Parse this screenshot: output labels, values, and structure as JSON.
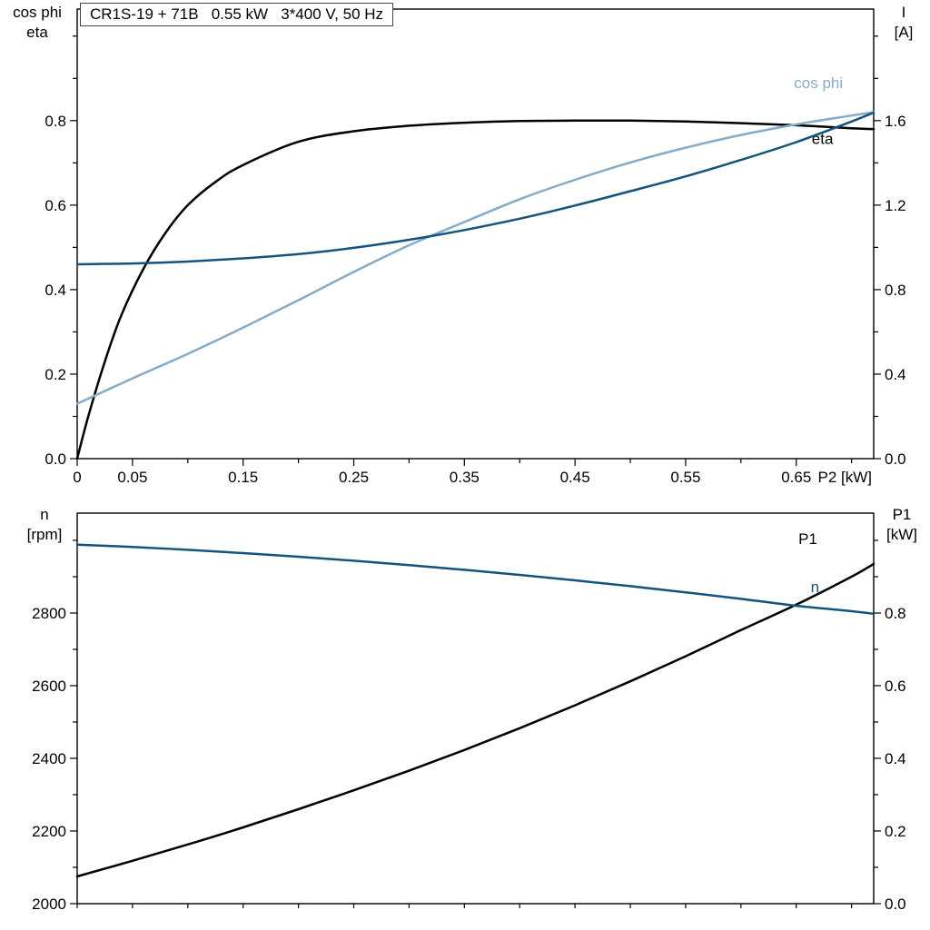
{
  "title_box": {
    "text": "CR1S-19 + 71B   0.55 kW   3*400 V, 50 Hz"
  },
  "corner_labels": {
    "top_left": [
      "cos phi",
      "eta"
    ],
    "top_right": [
      "I",
      "[A]"
    ],
    "bottom_left": [
      "n",
      "[rpm]"
    ],
    "bottom_right": [
      "P1",
      "[kW]"
    ]
  },
  "colors": {
    "black": "#000000",
    "dark_blue": "#14537d",
    "light_blue": "#85abc7",
    "frame": "#000000"
  },
  "chart_data": [
    {
      "type": "line",
      "title": "CR1S-19 + 71B  0.55 kW  3*400 V, 50 Hz",
      "grid": false,
      "x_axis": {
        "label": "P2 [kW]",
        "range": [
          0,
          0.72
        ],
        "tick_values": [
          0,
          0.05,
          0.1,
          0.15,
          0.2,
          0.25,
          0.3,
          0.35,
          0.4,
          0.45,
          0.5,
          0.55,
          0.6,
          0.65,
          0.7
        ],
        "tick_labels": [
          "0",
          "0.05",
          "",
          "0.15",
          "",
          "0.25",
          "",
          "0.35",
          "",
          "0.45",
          "",
          "0.55",
          "",
          "0.65",
          ""
        ]
      },
      "y_left": {
        "label": "cos phi / eta",
        "range": [
          0,
          1.064
        ],
        "tick_values": [
          0,
          0.1,
          0.2,
          0.3,
          0.4,
          0.5,
          0.6,
          0.7,
          0.8,
          0.9,
          1.0
        ],
        "tick_labels": [
          "0.0",
          "",
          "0.2",
          "",
          "0.4",
          "",
          "0.6",
          "",
          "0.8",
          "",
          ""
        ]
      },
      "y_right": {
        "label": "I [A]",
        "range": [
          0,
          2.128
        ],
        "tick_values": [
          0,
          0.2,
          0.4,
          0.6,
          0.8,
          1.0,
          1.2,
          1.4,
          1.6,
          1.8,
          2.0
        ],
        "tick_labels": [
          "0.0",
          "",
          "0.4",
          "",
          "0.8",
          "",
          "1.2",
          "",
          "1.6",
          "",
          ""
        ]
      },
      "series": [
        {
          "name": "eta",
          "axis": "left",
          "color": "#000000",
          "x": [
            0,
            0.01,
            0.025,
            0.04,
            0.06,
            0.08,
            0.1,
            0.125,
            0.15,
            0.2,
            0.25,
            0.3,
            0.35,
            0.4,
            0.45,
            0.5,
            0.55,
            0.6,
            0.65,
            0.7,
            0.72
          ],
          "y": [
            0,
            0.1,
            0.23,
            0.34,
            0.45,
            0.535,
            0.6,
            0.655,
            0.695,
            0.75,
            0.775,
            0.788,
            0.795,
            0.799,
            0.8,
            0.8,
            0.798,
            0.794,
            0.789,
            0.782,
            0.78
          ],
          "label": {
            "text": "eta",
            "x": 0.664,
            "y": 0.745
          }
        },
        {
          "name": "cos phi",
          "axis": "left",
          "color": "#85abc7",
          "x": [
            0,
            0.05,
            0.1,
            0.15,
            0.2,
            0.25,
            0.3,
            0.35,
            0.4,
            0.45,
            0.5,
            0.55,
            0.6,
            0.65,
            0.7,
            0.72
          ],
          "y": [
            0.13,
            0.19,
            0.248,
            0.31,
            0.375,
            0.442,
            0.505,
            0.56,
            0.614,
            0.66,
            0.701,
            0.736,
            0.766,
            0.791,
            0.812,
            0.82
          ],
          "label": {
            "text": "cos phi",
            "x": 0.648,
            "y": 0.877
          }
        },
        {
          "name": "I",
          "axis": "right",
          "color": "#14537d",
          "x": [
            0,
            0.05,
            0.1,
            0.15,
            0.2,
            0.25,
            0.3,
            0.35,
            0.4,
            0.45,
            0.5,
            0.55,
            0.6,
            0.65,
            0.7,
            0.72
          ],
          "y": [
            0.92,
            0.924,
            0.933,
            0.948,
            0.968,
            0.998,
            1.036,
            1.082,
            1.136,
            1.198,
            1.266,
            1.336,
            1.414,
            1.498,
            1.596,
            1.638
          ]
        }
      ]
    },
    {
      "type": "line",
      "grid": false,
      "x_axis": {
        "label": "",
        "range": [
          0,
          0.72
        ],
        "tick_values": [
          0,
          0.05,
          0.1,
          0.15,
          0.2,
          0.25,
          0.3,
          0.35,
          0.4,
          0.45,
          0.5,
          0.55,
          0.6,
          0.65,
          0.7
        ],
        "tick_labels": [
          "",
          "",
          "",
          "",
          "",
          "",
          "",
          "",
          "",
          "",
          "",
          "",
          "",
          "",
          ""
        ]
      },
      "y_left": {
        "label": "n [rpm]",
        "range": [
          2000,
          3075
        ],
        "tick_values": [
          2000,
          2100,
          2200,
          2300,
          2400,
          2500,
          2600,
          2700,
          2800,
          2900,
          3000
        ],
        "tick_labels": [
          "2000",
          "",
          "2200",
          "",
          "2400",
          "",
          "2600",
          "",
          "2800",
          "",
          ""
        ]
      },
      "y_right": {
        "label": "P1 [kW]",
        "range": [
          0,
          1.075
        ],
        "tick_values": [
          0,
          0.1,
          0.2,
          0.3,
          0.4,
          0.5,
          0.6,
          0.7,
          0.8,
          0.9,
          1.0
        ],
        "tick_labels": [
          "0.0",
          "",
          "0.2",
          "",
          "0.4",
          "",
          "0.6",
          "",
          "0.8",
          "",
          ""
        ]
      },
      "series": [
        {
          "name": "P1",
          "axis": "right",
          "color": "#000000",
          "x": [
            0,
            0.05,
            0.1,
            0.15,
            0.2,
            0.25,
            0.3,
            0.35,
            0.4,
            0.45,
            0.5,
            0.55,
            0.6,
            0.65,
            0.7,
            0.72
          ],
          "y": [
            0.075,
            0.118,
            0.163,
            0.21,
            0.26,
            0.312,
            0.366,
            0.423,
            0.483,
            0.546,
            0.612,
            0.681,
            0.753,
            0.823,
            0.9,
            0.935
          ],
          "label": {
            "text": "P1",
            "x": 0.652,
            "y": 0.99
          }
        },
        {
          "name": "n",
          "axis": "left",
          "color": "#14537d",
          "x": [
            0,
            0.05,
            0.1,
            0.15,
            0.2,
            0.25,
            0.3,
            0.35,
            0.4,
            0.45,
            0.5,
            0.55,
            0.6,
            0.65,
            0.7,
            0.72
          ],
          "y": [
            2988,
            2982,
            2974,
            2965,
            2955,
            2944,
            2932,
            2919,
            2905,
            2890,
            2874,
            2857,
            2839,
            2820,
            2805,
            2798
          ],
          "label": {
            "text": "n",
            "x": 0.663,
            "y": 2858
          }
        }
      ]
    }
  ]
}
